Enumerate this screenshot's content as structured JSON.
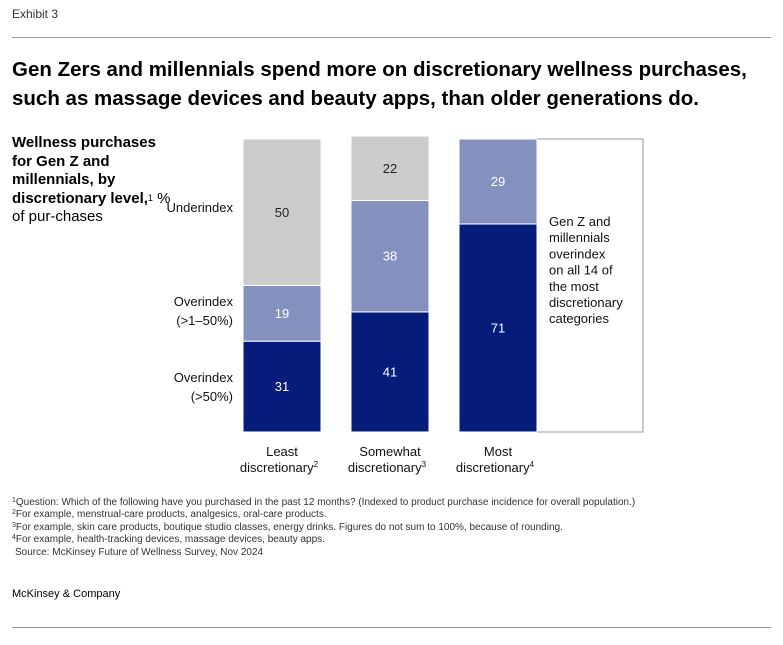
{
  "header": {
    "exhibit_label": "Exhibit 3",
    "title": "Gen Zers and millennials spend more on discretionary wellness purchases, such as massage devices and beauty apps, than older generations do."
  },
  "subtitle": {
    "bold_text": "Wellness purchases for Gen Z and millennials, by discretionary level,",
    "note_mark": "1",
    "unit_text": " % of pur-chases"
  },
  "chart_data": {
    "type": "bar",
    "stacked": true,
    "orientation": "vertical",
    "categories": [
      "Least discretionary",
      "Somewhat discretionary",
      "Most discretionary"
    ],
    "category_note_marks": [
      "2",
      "3",
      "4"
    ],
    "series": [
      {
        "name": "Overindex (>50%)",
        "values": [
          31,
          41,
          71
        ],
        "color": "#051c7a",
        "label_color": "#ffffff"
      },
      {
        "name": "Overindex (>1–50%)",
        "values": [
          19,
          38,
          29
        ],
        "color": "#8491bf",
        "label_color": "#ffffff"
      },
      {
        "name": "Underindex",
        "values": [
          50,
          22,
          0
        ],
        "color": "#cccccc",
        "label_color": "#222222"
      }
    ],
    "legend_placement": "left of bars, aligned to segments",
    "ylim": [
      0,
      100
    ],
    "axes_visible": false,
    "grid": false,
    "annotation": {
      "text": "Gen Z and millennials overindex on all 14 of the most discretionary categories",
      "target_category": "Most discretionary"
    }
  },
  "footnotes": [
    {
      "mark": "1",
      "text": "Question: Which of the following have you purchased in the past 12 months? (Indexed to product purchase incidence for overall population.)"
    },
    {
      "mark": "2",
      "text": "For example, menstrual-care products, analgesics, oral-care products."
    },
    {
      "mark": "3",
      "text": "For example, skin care products, boutique studio classes, energy drinks. Figures do not sum to 100%, because of rounding."
    },
    {
      "mark": "4",
      "text": "For example, health-tracking devices, massage devices, beauty apps."
    }
  ],
  "source": "Source: McKinsey Future of Wellness Survey, Nov 2024",
  "brand": "McKinsey & Company"
}
